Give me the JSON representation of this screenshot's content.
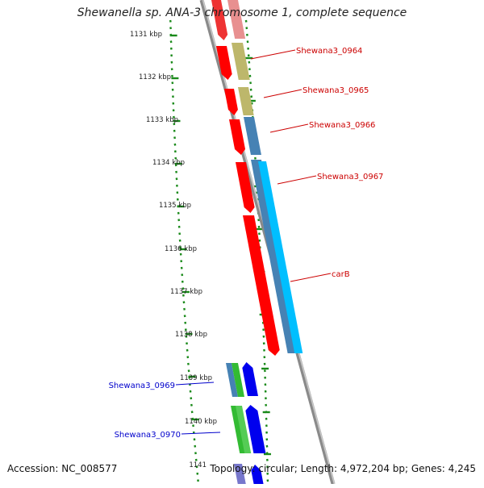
{
  "title": "Shewanella sp. ANA-3 chromosome 1, complete sequence",
  "footer": {
    "accession": "Accession: NC_008577",
    "topology": "Topology: circular; Length: 4,972,204 bp; Genes: 4,245"
  },
  "scale_ticks": [
    "1131 kbp",
    "1132 kbp",
    "1133 kbp",
    "1134 kbp",
    "1135 kbp",
    "1136 kbp",
    "1137 kbp",
    "1138 kbp",
    "1139 kbp",
    "1140 kbp",
    "1141"
  ],
  "gene_labels": [
    {
      "text": "Shewana3_0964",
      "color": "#cc0000"
    },
    {
      "text": "Shewana3_0965",
      "color": "#cc0000"
    },
    {
      "text": "Shewana3_0966",
      "color": "#cc0000"
    },
    {
      "text": "Shewana3_0967",
      "color": "#cc0000"
    },
    {
      "text": "carB",
      "color": "#cc0000"
    },
    {
      "text": "Shewana3_0969",
      "color": "#0000cc"
    },
    {
      "text": "Shewana3_0970",
      "color": "#0000cc"
    }
  ],
  "colors": {
    "backbone": "#888888",
    "cds_forward": "#ff0000",
    "cds_reverse": "#0000ee",
    "cog_olive": "#bdb76b",
    "cog_steelblue": "#4682b4",
    "cog_skyblue": "#00bfff",
    "cog_green": "#33bb33",
    "ruler": "#1a8a1a",
    "label_forward": "#cc0000",
    "label_reverse": "#0000cc"
  }
}
